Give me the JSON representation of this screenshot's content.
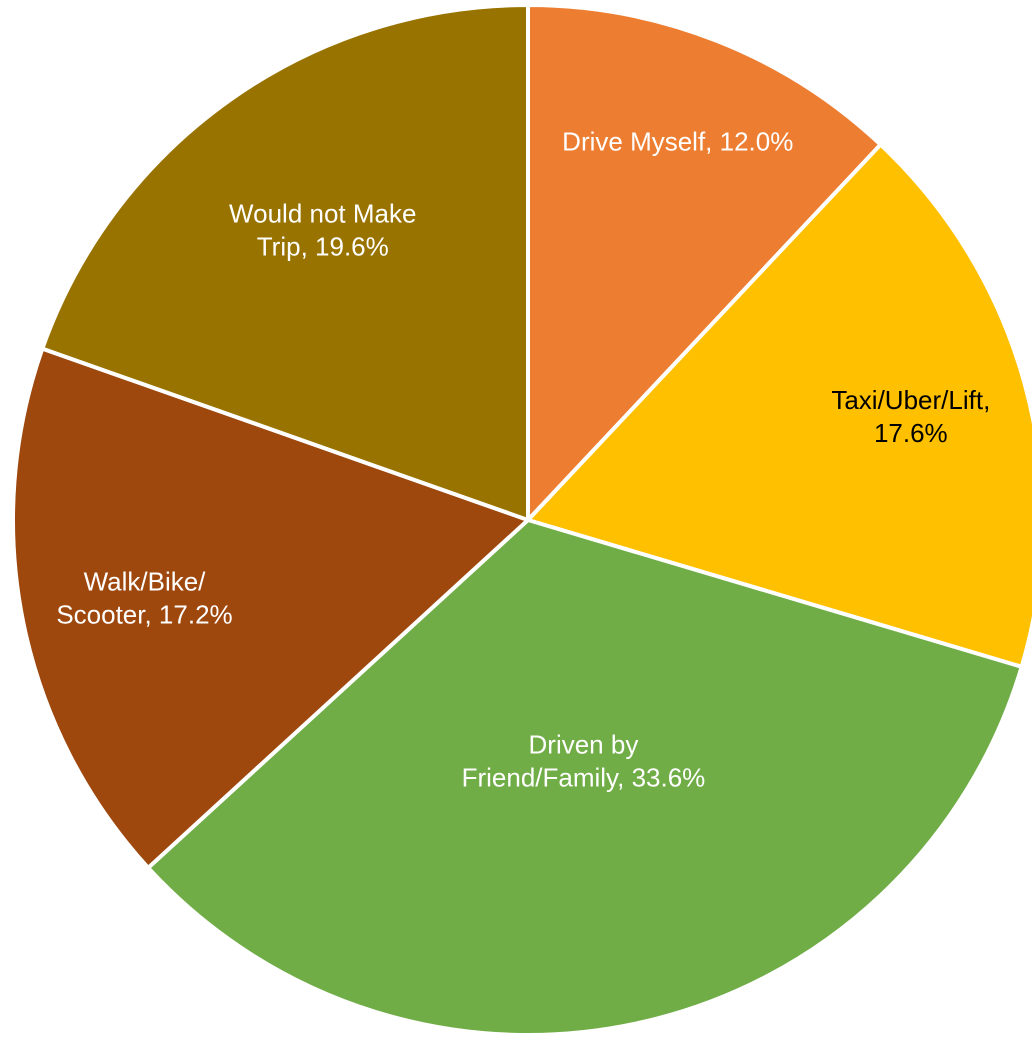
{
  "chart_data": {
    "type": "pie",
    "values": [
      12.0,
      17.6,
      33.6,
      17.2,
      19.6
    ],
    "value_labels": [
      [
        "Drive Myself, 12.0%"
      ],
      [
        "Taxi/Uber/Lift,",
        "17.6%"
      ],
      [
        "Driven by",
        "Friend/Family, 33.6%"
      ],
      [
        "Walk/Bike/",
        "Scooter, 17.2%"
      ],
      [
        "Would not Make",
        "Trip, 19.6%"
      ]
    ],
    "colors": [
      "#ed7d31",
      "#ffc000",
      "#70ad47",
      "#9e480e",
      "#997300"
    ],
    "label_colors": [
      "#ffffff",
      "#000000",
      "#ffffff",
      "#ffffff",
      "#ffffff"
    ]
  }
}
